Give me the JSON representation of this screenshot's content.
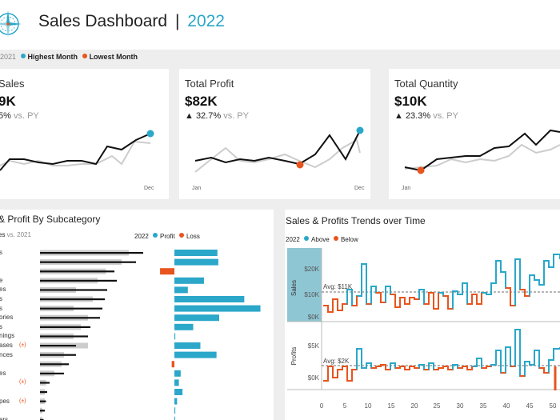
{
  "header": {
    "title": "Sales Dashboard",
    "separator": "|",
    "year": "2022"
  },
  "legend_top": {
    "prefix": "2021",
    "highest_label": "Highest Month",
    "lowest_label": "Lowest Month"
  },
  "kpis": [
    {
      "title": "Sales",
      "value": "9K",
      "delta": "5%",
      "vs": " vs. PY",
      "axis_start": "",
      "axis_end": "Dec"
    },
    {
      "title": "Total Profit",
      "value": "$82K",
      "delta": "▲ 32.7%",
      "vs": " vs. PY",
      "axis_start": "Jan",
      "axis_end": "Dec"
    },
    {
      "title": "Total Quantity",
      "value": "$10K",
      "delta": "▲ 23.3%",
      "vs": " vs. PY",
      "axis_start": "Jan",
      "axis_end": ""
    }
  ],
  "subcategory": {
    "title": "& Profit By Subcategory",
    "subtitle_prefix": "es",
    "subtitle_suffix": " vs. 2021",
    "legend_year": "2022",
    "legend_profit": "Profit",
    "legend_loss": "Loss",
    "labels": [
      "s",
      "",
      "",
      "e",
      "es",
      "s",
      "s",
      "ories",
      "s",
      "nings",
      "ases",
      "nces",
      "",
      "es",
      "",
      "",
      "pes",
      "",
      "ers"
    ],
    "flag": "(±)",
    "sales_2022": [
      0.86,
      0.8,
      0.62,
      0.64,
      0.56,
      0.54,
      0.52,
      0.5,
      0.42,
      0.4,
      0.3,
      0.3,
      0.24,
      0.2,
      0.08,
      0.06,
      0.05,
      0.04,
      0.03
    ],
    "sales_2021": [
      0.74,
      0.68,
      0.55,
      0.48,
      0.3,
      0.44,
      0.28,
      0.4,
      0.34,
      0.28,
      0.4,
      0.2,
      0.18,
      0.12,
      0.05,
      0.04,
      0.04,
      0.02,
      0.02
    ],
    "profit": [
      0.48,
      0.49,
      -0.16,
      0.33,
      0.15,
      0.78,
      0.96,
      0.5,
      0.21,
      0.01,
      0.29,
      0.47,
      -0.03,
      0.07,
      0.05,
      0.09,
      0.03,
      0.01,
      0.0
    ]
  },
  "trends": {
    "title": "Sales & Profits Trends over Time",
    "legend_year": "2022",
    "legend_above": "Above",
    "legend_below": "Below",
    "sales_label": "Sales",
    "profits_label": "Profits",
    "sales_avg_label": "Avg: $11K",
    "profits_avg_label": "Avg: $2K",
    "sales_ticks": [
      "$20K",
      "$10K",
      "$0K"
    ],
    "profits_ticks": [
      "$5K",
      "$0K"
    ],
    "x_ticks": [
      "0",
      "5",
      "10",
      "15",
      "20",
      "25",
      "30",
      "35",
      "40",
      "45",
      "50"
    ]
  },
  "colors": {
    "accent": "#2aa7c9",
    "loss": "#e8541e",
    "line_current": "#111111",
    "line_prior": "#cccccc"
  }
}
